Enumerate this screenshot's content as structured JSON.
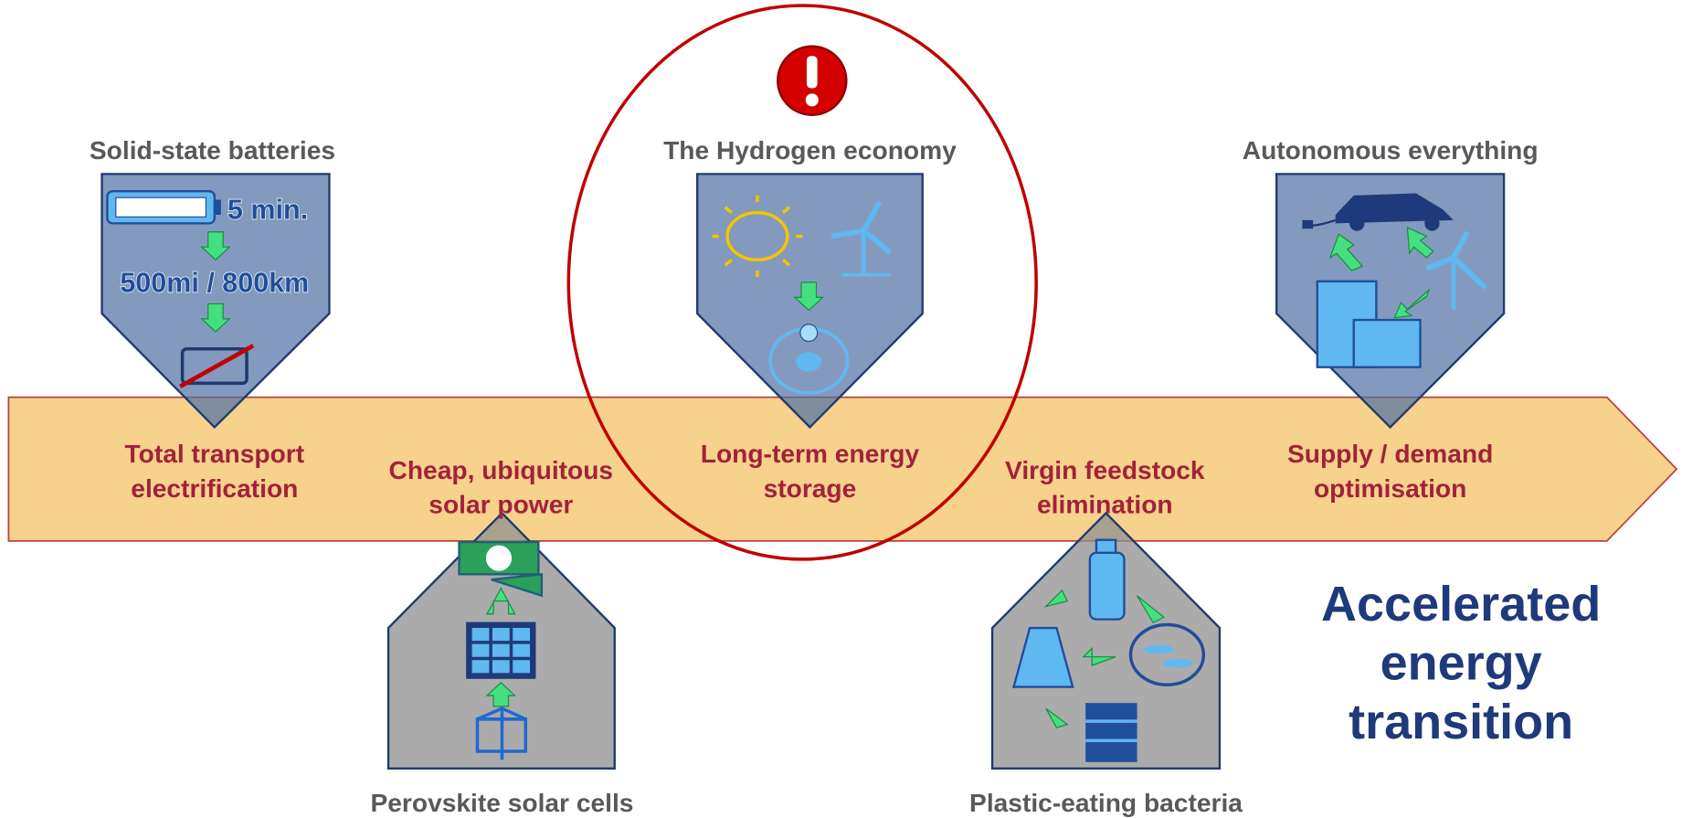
{
  "top_items": [
    {
      "label": "Solid-state batteries"
    },
    {
      "label": "The Hydrogen economy"
    },
    {
      "label": "Autonomous everything"
    }
  ],
  "bottom_items": [
    {
      "label": "Perovskite solar cells"
    },
    {
      "label": "Plastic-eating bacteria"
    }
  ],
  "battery_icon": {
    "charge_time": "5 min.",
    "range": "500mi / 800km"
  },
  "milestones": [
    {
      "lines": [
        "Total transport",
        "electrification"
      ]
    },
    {
      "lines": [
        "Cheap, ubiquitous",
        "solar power"
      ]
    },
    {
      "lines": [
        "Long-term energy",
        "storage"
      ]
    },
    {
      "lines": [
        "Virgin feedstock",
        "elimination"
      ]
    },
    {
      "lines": [
        "Supply / demand",
        "optimisation"
      ]
    }
  ],
  "headline": {
    "lines": [
      "Accelerated",
      "energy",
      "transition"
    ]
  }
}
